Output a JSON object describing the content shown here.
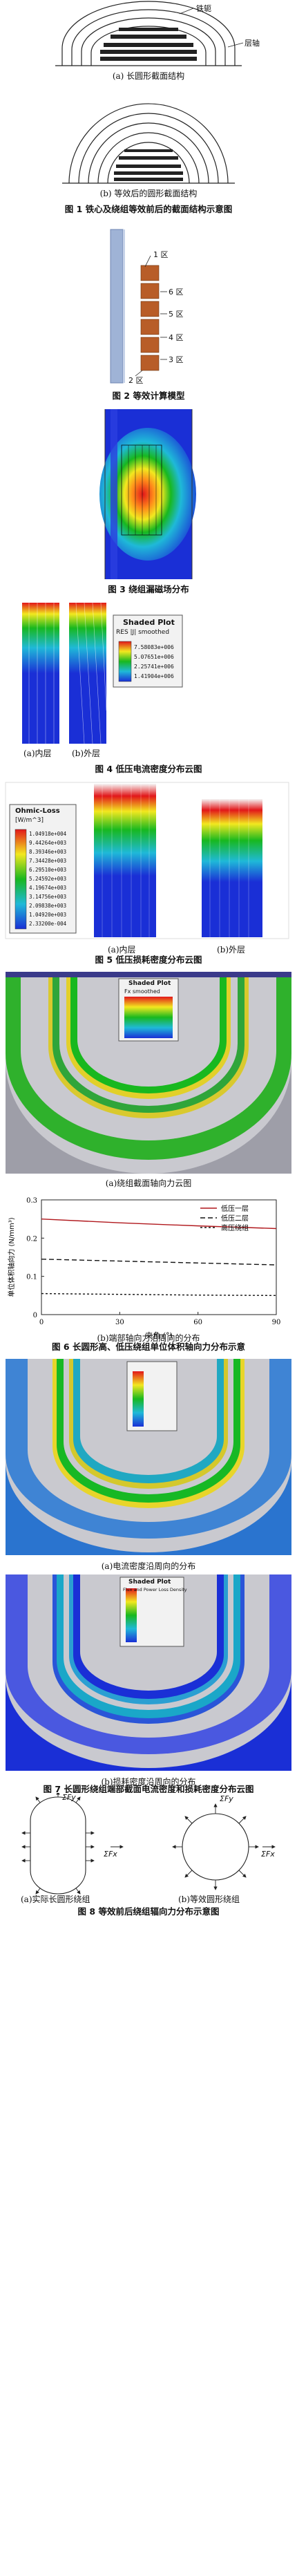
{
  "fig1": {
    "label_core": "铁轭",
    "label_winding": "层轴",
    "sub_a": "(a) 长圆形截面结构",
    "sub_b": "(b) 等效后的圆形截面结构",
    "caption": "图 1  铁心及绕组等效前后的截面结构示意图"
  },
  "fig2": {
    "zones": [
      "1 区",
      "6 区",
      "5 区",
      "4 区",
      "3 区",
      "2 区"
    ],
    "caption": "图 2  等效计算模型"
  },
  "fig3": {
    "caption": "图 3  绕组漏磁场分布"
  },
  "fig4": {
    "legend_title": "Shaded Plot",
    "legend_sub": "RES |J| smoothed",
    "legend_values": [
      "7.58083e+006",
      "5.07651e+006",
      "2.25741e+006",
      "1.41904e+006"
    ],
    "sub_a": "(a)内层",
    "sub_b": "(b)外层",
    "caption": "图 4  低压电流密度分布云图"
  },
  "fig5": {
    "legend_title": "Ohmic-Loss",
    "legend_unit": "[W/m^3]",
    "legend_values": [
      "1.04918e+004",
      "9.44264e+003",
      "8.39346e+003",
      "7.34428e+003",
      "6.29510e+003",
      "5.24592e+003",
      "4.19674e+003",
      "3.14756e+003",
      "2.09838e+003",
      "1.04920e+003",
      "2.33200e-004"
    ],
    "sub_a": "(a)内层",
    "sub_b": "(b)外层",
    "caption": "图 5  低压损耗密度分布云图"
  },
  "fig6": {
    "legend_title": "Shaded Plot",
    "legend_sub": "Fx  smoothed",
    "sub_a": "(a)绕组截面轴向力云图",
    "sub_b": "(b)端部轴向力沿周向的分布",
    "caption": "图 6  长圆形高、低压绕组单位体积轴向力分布示意",
    "chart_data": {
      "type": "line",
      "x": [
        0,
        30,
        60,
        90
      ],
      "series": [
        {
          "name": "低压一层",
          "values": [
            0.25,
            0.24,
            0.232,
            0.225
          ]
        },
        {
          "name": "低压二层",
          "values": [
            0.145,
            0.14,
            0.135,
            0.13
          ]
        },
        {
          "name": "高压绕组",
          "values": [
            0.055,
            0.053,
            0.051,
            0.05
          ]
        }
      ],
      "xlabel": "夹角 (°)",
      "ylabel": "单位体积轴向力 (N/mm³)",
      "xlim": [
        0,
        90
      ],
      "ylim": [
        0,
        0.3
      ],
      "yticks": [
        "0",
        "0.1",
        "0.2",
        "0.3"
      ],
      "xticks": [
        "0",
        "30",
        "60",
        "90"
      ],
      "legend_position": "top-right"
    }
  },
  "fig7": {
    "legend_title": "Shaded Plot",
    "legend_sub": "Flux and Power Loss Density",
    "sub_a": "(a)电流密度沿周向的分布",
    "sub_b": "(b)损耗密度沿周向的分布",
    "caption": "图 7  长圆形绕组端部截面电流密度和损耗密度分布云图"
  },
  "fig8": {
    "label_fy_a": "ΣFy",
    "label_fx_a": "ΣFx",
    "label_fy_b": "ΣFy",
    "label_fx_b": "ΣFx",
    "sub_a": "(a)实际长圆形绕组",
    "sub_b": "(b)等效圆形绕组",
    "caption": "图 8  等效前后绕组辐向力分布示意图"
  },
  "colors": {
    "fea_blue": "#1a2fd6",
    "fea_green": "#18b81f",
    "fea_red": "#e2171a",
    "line_red": "#b0171c"
  }
}
